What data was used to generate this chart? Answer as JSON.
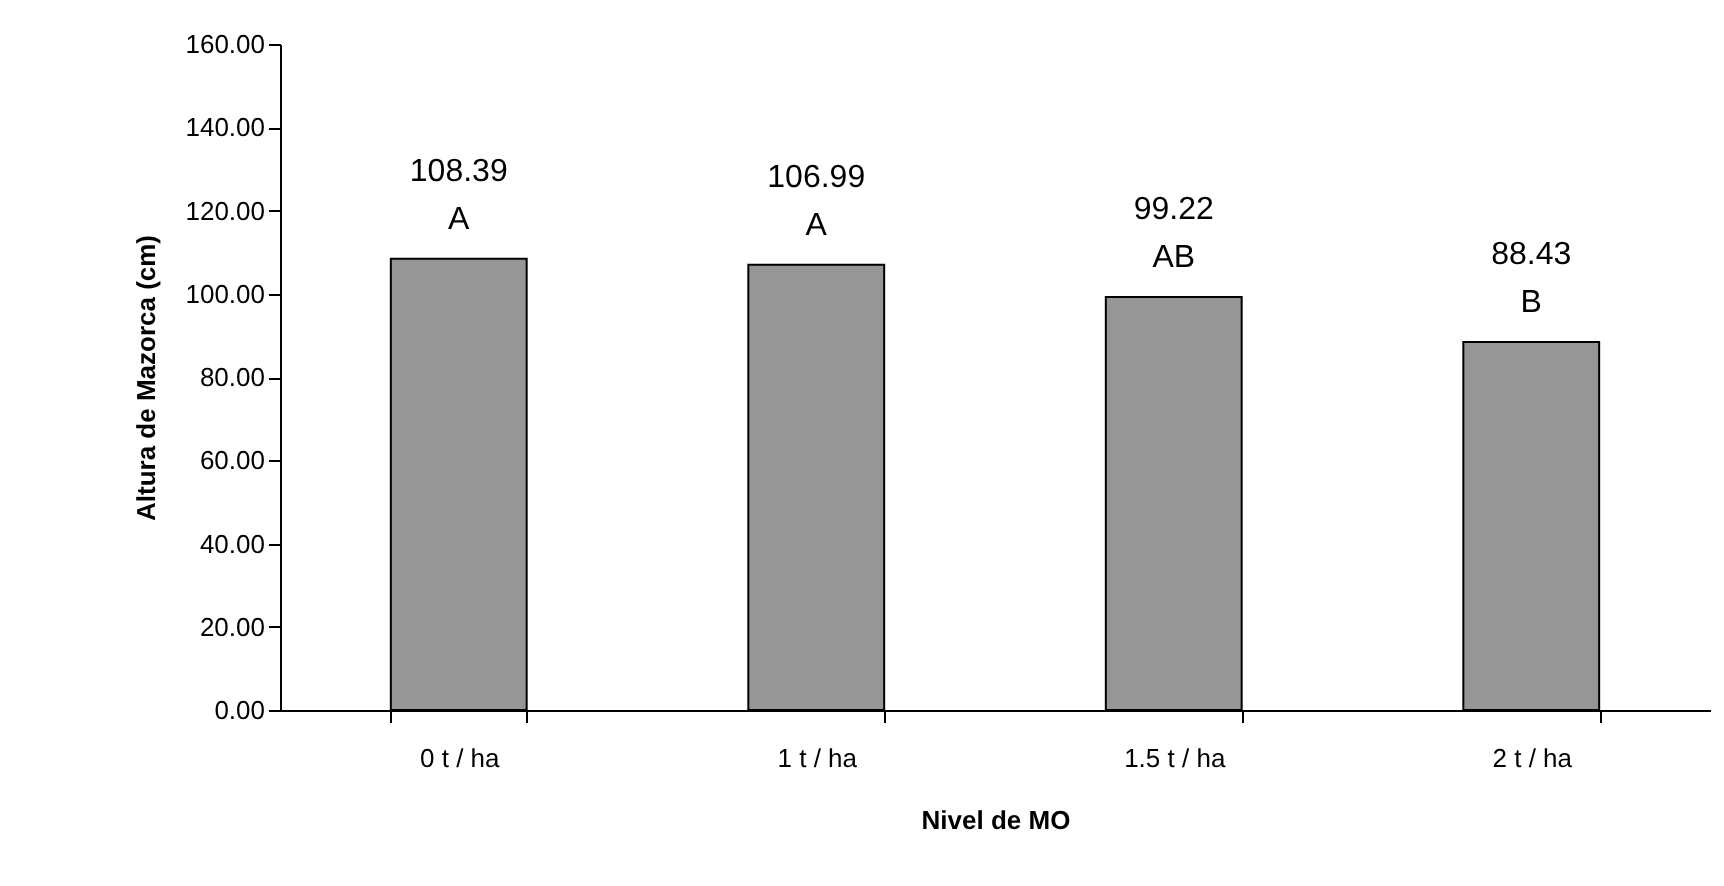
{
  "chart_data": {
    "type": "bar",
    "xlabel": "Nivel de MO",
    "ylabel": "Altura de Mazorca (cm)",
    "categories": [
      "0 t / ha",
      "1 t / ha",
      "1.5 t / ha",
      "2 t / ha"
    ],
    "values": [
      108.39,
      106.99,
      99.22,
      88.43
    ],
    "value_labels": [
      "108.39\nA",
      "106.99\nA",
      "99.22\nAB",
      "88.43\nB"
    ],
    "color": "#969696",
    "ylim": [
      0,
      160
    ],
    "yticks": [
      {
        "value": 0,
        "label": "0.00"
      },
      {
        "value": 20,
        "label": "20.00"
      },
      {
        "value": 40,
        "label": "40.00"
      },
      {
        "value": 60,
        "label": "60.00"
      },
      {
        "value": 80,
        "label": "80.00"
      },
      {
        "value": 100,
        "label": "100.00"
      },
      {
        "value": 120,
        "label": "120.00"
      },
      {
        "value": 140,
        "label": "140.00"
      },
      {
        "value": 160,
        "label": "160.00"
      }
    ],
    "grid": false
  }
}
